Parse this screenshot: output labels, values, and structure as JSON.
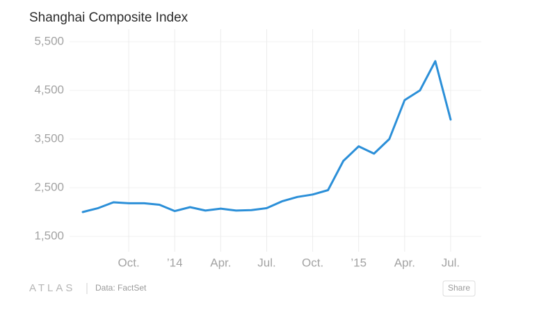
{
  "chart_data": {
    "type": "line",
    "title": "Shanghai Composite Index",
    "x": [
      "2013-07",
      "2013-08",
      "2013-09",
      "2013-10",
      "2013-11",
      "2013-12",
      "2014-01",
      "2014-02",
      "2014-03",
      "2014-04",
      "2014-05",
      "2014-06",
      "2014-07",
      "2014-08",
      "2014-09",
      "2014-10",
      "2014-11",
      "2014-12",
      "2015-01",
      "2015-02",
      "2015-03",
      "2015-04",
      "2015-05",
      "2015-06",
      "2015-07"
    ],
    "series": [
      {
        "name": "Shanghai Composite Index",
        "color": "#2b8fd8",
        "values": [
          2000,
          2080,
          2200,
          2180,
          2180,
          2150,
          2020,
          2100,
          2030,
          2070,
          2030,
          2040,
          2080,
          2220,
          2310,
          2360,
          2450,
          3050,
          3350,
          3200,
          3500,
          4300,
          4500,
          5100,
          3900
        ]
      }
    ],
    "xlim": [
      "2013-06",
      "2015-09"
    ],
    "xticks": [
      {
        "value": "2013-10",
        "label": "Oct."
      },
      {
        "value": "2014-01",
        "label": "’14"
      },
      {
        "value": "2014-04",
        "label": "Apr."
      },
      {
        "value": "2014-07",
        "label": "Jul."
      },
      {
        "value": "2014-10",
        "label": "Oct."
      },
      {
        "value": "2015-01",
        "label": "’15"
      },
      {
        "value": "2015-04",
        "label": "Apr."
      },
      {
        "value": "2015-07",
        "label": "Jul."
      }
    ],
    "ylim": [
      1500,
      5500
    ],
    "yticks": [
      {
        "value": 1500,
        "label": "1,500"
      },
      {
        "value": 2500,
        "label": "2,500"
      },
      {
        "value": 3500,
        "label": "3,500"
      },
      {
        "value": 4500,
        "label": "4,500"
      },
      {
        "value": 5500,
        "label": "5,500"
      }
    ],
    "grid": true
  },
  "footer": {
    "logo": "ATLAS",
    "source": "Data: FactSet",
    "share": "Share"
  }
}
